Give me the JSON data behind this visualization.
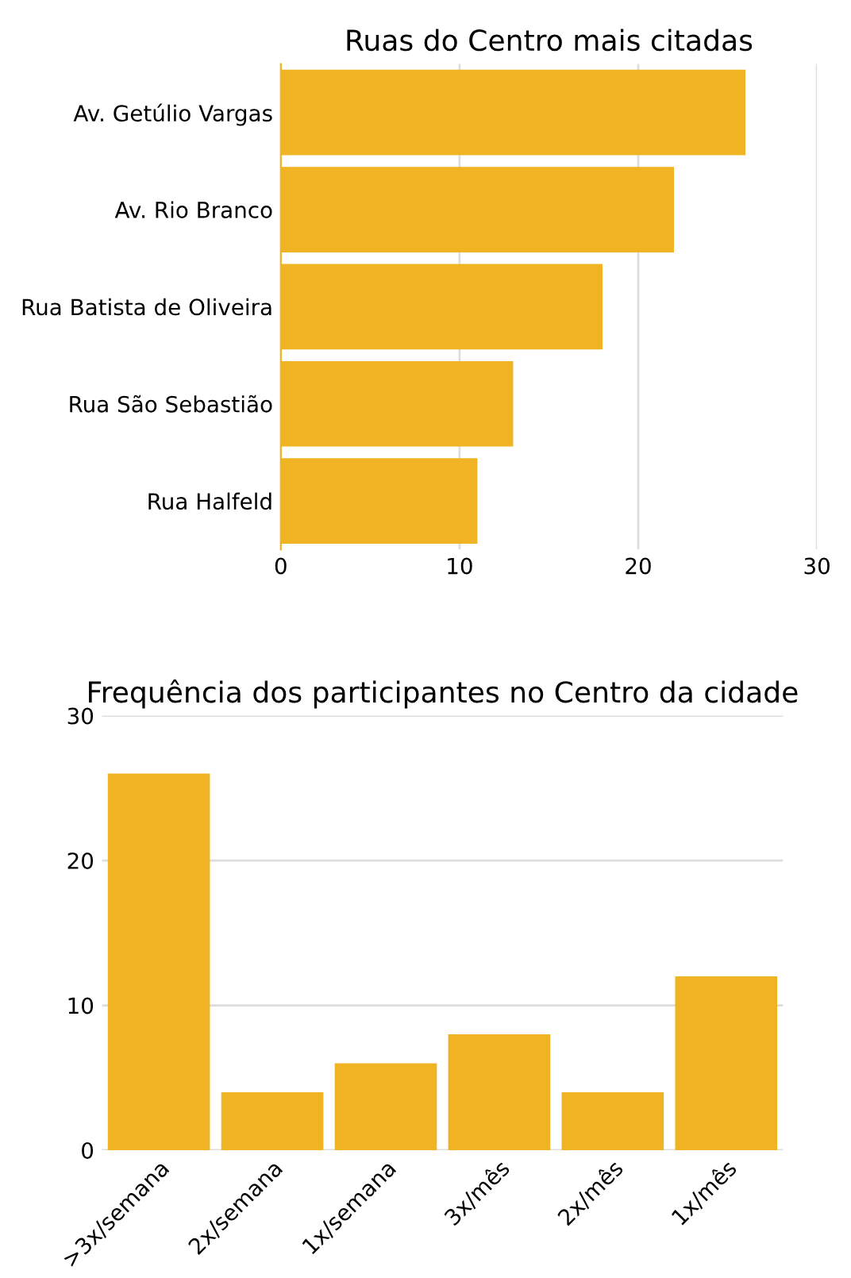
{
  "chart_data": [
    {
      "type": "bar",
      "orientation": "horizontal",
      "title": "Ruas do Centro mais citadas",
      "categories": [
        "Av. Getúlio Vargas",
        "Av. Rio Branco",
        "Rua Batista de Oliveira",
        "Rua São Sebastião",
        "Rua Halfeld"
      ],
      "values": [
        26,
        22,
        18,
        13,
        11
      ],
      "color": "#f0b323",
      "xlim": [
        0,
        30
      ],
      "xticks": [
        0,
        10,
        20,
        30
      ],
      "grid": "x"
    },
    {
      "type": "bar",
      "title": "Frequência dos participantes no Centro da cidade",
      "categories": [
        ">3x/semana",
        "2x/semana",
        "1x/semana",
        "3x/mês",
        "2x/mês",
        "1x/mês"
      ],
      "values": [
        26,
        4,
        6,
        8,
        4,
        12
      ],
      "color": "#f0b323",
      "ylim": [
        0,
        30
      ],
      "yticks": [
        0,
        10,
        20,
        30
      ],
      "grid": "y"
    }
  ]
}
